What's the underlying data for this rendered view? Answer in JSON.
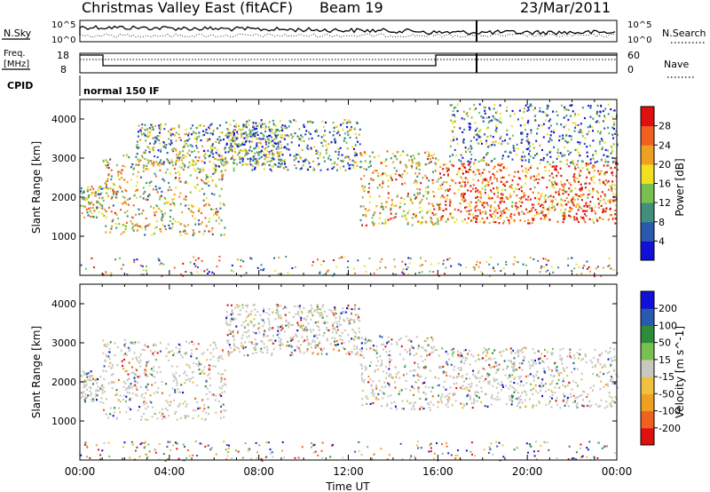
{
  "header": {
    "title": "Christmas Valley East (fitACF)",
    "beam": "Beam 19",
    "date": "23/Mar/2011"
  },
  "control_panels": {
    "nsky_label": "N.Sky",
    "nsearch_label": "N.Search",
    "nsky_ticks": [
      "10^5",
      "10^0"
    ],
    "nsearch_ticks": [
      "10^5",
      "10^0"
    ],
    "freq_label_1": "Freq.",
    "freq_label_2": "[MHz]",
    "freq_ticks": [
      "18",
      "8"
    ],
    "nave_label": "Nave",
    "nave_ticks": [
      "60",
      "0"
    ],
    "cpid_label": "CPID",
    "cpid_value": "normal 150 IF"
  },
  "chart_data": [
    {
      "type": "heatmap",
      "title": "",
      "xlabel": "",
      "ylabel": "Slant Range [km]",
      "xlim_hours": [
        0,
        24
      ],
      "ylim_km": [
        0,
        4500
      ],
      "y_ticks": [
        1000,
        2000,
        3000,
        4000
      ],
      "colorbar": {
        "label": "Power [dB]",
        "ticks": [
          "4",
          "8",
          "12",
          "16",
          "20",
          "24",
          "28"
        ],
        "range": [
          0,
          30
        ],
        "colors": [
          "#1010d8",
          "#2a5ab0",
          "#3f8f7a",
          "#78c050",
          "#f0e020",
          "#f0a020",
          "#f06020",
          "#e01010"
        ]
      },
      "echo_bands": [
        {
          "t0": 0.0,
          "t1": 1.0,
          "r0": 1500,
          "r1": 2300,
          "level": 0.5
        },
        {
          "t0": 1.0,
          "t1": 6.5,
          "r0": 1050,
          "r1": 3100,
          "level": 0.55
        },
        {
          "t0": 2.5,
          "t1": 9.0,
          "r0": 2800,
          "r1": 3900,
          "level": 0.4
        },
        {
          "t0": 6.5,
          "t1": 12.5,
          "r0": 2700,
          "r1": 4000,
          "level": 0.35
        },
        {
          "t0": 12.5,
          "t1": 16.0,
          "r0": 1300,
          "r1": 3200,
          "level": 0.6
        },
        {
          "t0": 16.0,
          "t1": 24.0,
          "r0": 1350,
          "r1": 2900,
          "level": 0.8
        },
        {
          "t0": 16.5,
          "t1": 24.0,
          "r0": 2900,
          "r1": 4400,
          "level": 0.3
        }
      ]
    },
    {
      "type": "heatmap",
      "title": "",
      "xlabel": "Time UT",
      "ylabel": "Slant Range [km]",
      "xlim_hours": [
        0,
        24
      ],
      "ylim_km": [
        0,
        4500
      ],
      "y_ticks": [
        1000,
        2000,
        3000,
        4000
      ],
      "x_ticks": [
        "00:00",
        "04:00",
        "08:00",
        "12:00",
        "16:00",
        "20:00",
        "00:00"
      ],
      "colorbar": {
        "label": "Velocity [m s^-1]",
        "ticks": [
          "200",
          "100",
          "50",
          "15",
          "-15",
          "-50",
          "-100",
          "-200"
        ],
        "range": [
          -250,
          250
        ],
        "colors": [
          "#1010d8",
          "#2a5ab0",
          "#2f8a3a",
          "#78c050",
          "#c8c8c0",
          "#f0c040",
          "#f0a020",
          "#f06020",
          "#e01010"
        ]
      },
      "echo_bands": [
        {
          "t0": 0.0,
          "t1": 1.0,
          "r0": 1500,
          "r1": 2300,
          "level": 0.45
        },
        {
          "t0": 1.0,
          "t1": 6.5,
          "r0": 1050,
          "r1": 3100,
          "level": 0.5
        },
        {
          "t0": 6.5,
          "t1": 12.5,
          "r0": 2700,
          "r1": 4000,
          "level": 0.55
        },
        {
          "t0": 12.5,
          "t1": 16.0,
          "r0": 1300,
          "r1": 3200,
          "level": 0.5
        },
        {
          "t0": 16.0,
          "t1": 24.0,
          "r0": 1350,
          "r1": 2900,
          "level": 0.45
        }
      ]
    }
  ]
}
